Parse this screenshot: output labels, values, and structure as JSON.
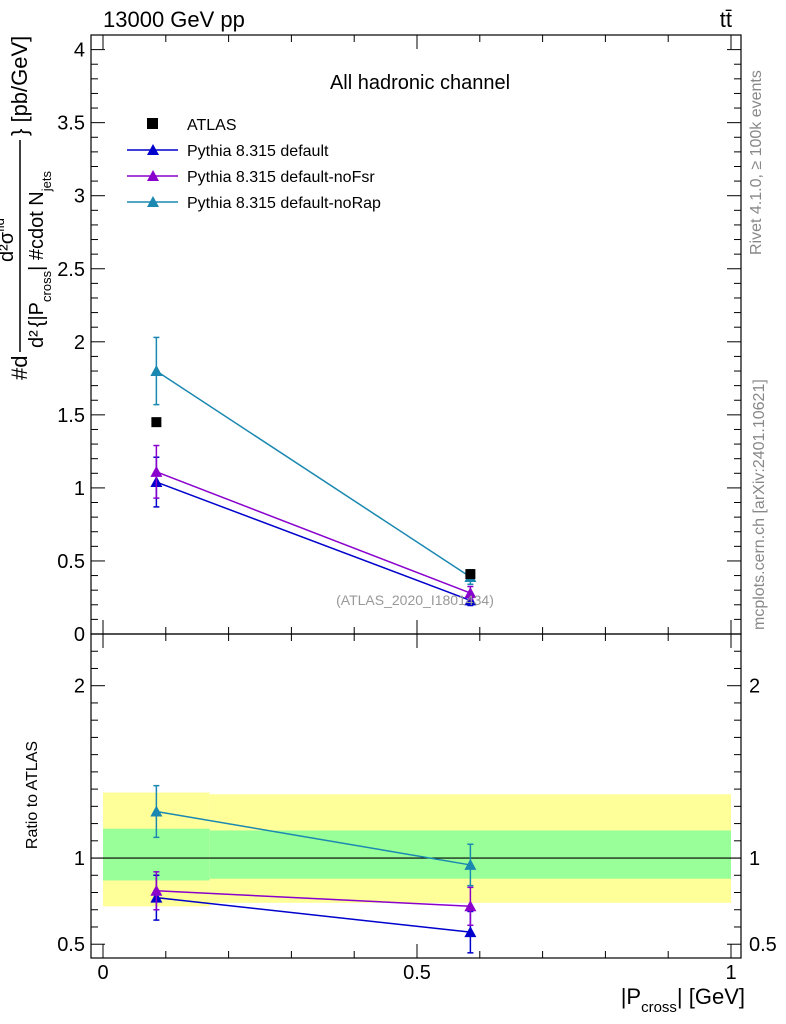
{
  "header": {
    "left": "13000 GeV pp",
    "right": "tt̄"
  },
  "side_labels": {
    "rivet": "Rivet 4.1.0, ≥ 100k events",
    "mcplots": "mcplots.cern.ch [arXiv:2401.10621]"
  },
  "chart_data": [
    {
      "type": "line",
      "title": "All hadronic channel",
      "watermark": "(ATLAS_2020_I1801434)",
      "ylabel": {
        "prefix": "#d",
        "numerator": "d²σ",
        "numerator_sup": "fid",
        "denominator_d2": "d²",
        "denominator": "{|P",
        "denominator_sub": "cross",
        "denominator_rest": "| #cdot N",
        "denominator_rest_sub": "jets",
        "unit": "} [pb/GeV]"
      },
      "ylim": [
        0,
        4.1
      ],
      "yticks": [
        "0",
        "0.5",
        "1",
        "1.5",
        "2",
        "2.5",
        "3",
        "3.5",
        "4"
      ],
      "legend": [
        "ATLAS",
        "Pythia 8.315 default",
        "Pythia 8.315 default-noFsr",
        "Pythia 8.315 default-noRap"
      ],
      "data": {
        "name": "ATLAS",
        "x": [
          0.085,
          0.585
        ],
        "y": [
          1.45,
          0.41
        ]
      },
      "series": [
        {
          "name": "Pythia 8.315 default",
          "color": "#0000cc",
          "x": [
            0.085,
            0.585
          ],
          "y": [
            1.04,
            0.23
          ],
          "err": [
            0.17,
            0.035
          ]
        },
        {
          "name": "Pythia 8.315 default-noFsr",
          "color": "#8a00cc",
          "x": [
            0.085,
            0.585
          ],
          "y": [
            1.11,
            0.28
          ],
          "err": [
            0.18,
            0.045
          ]
        },
        {
          "name": "Pythia 8.315 default-noRap",
          "color": "#1a88b0",
          "x": [
            0.085,
            0.585
          ],
          "y": [
            1.8,
            0.39
          ],
          "err": [
            0.23,
            0.05
          ]
        }
      ]
    },
    {
      "type": "line",
      "ylabel": "Ratio to ATLAS",
      "xlabel": {
        "pre": "|P",
        "sub": "cross",
        "post": "| [GeV]"
      },
      "xlim": [
        0,
        1
      ],
      "ylim": [
        0.42,
        2.3
      ],
      "xticks": [
        "0",
        "0.5",
        "1"
      ],
      "yticks": [
        "0.5",
        "1",
        "2"
      ],
      "bands": {
        "bins": [
          0,
          0.17,
          1
        ],
        "yellow_lo": [
          0.72,
          0.74
        ],
        "yellow_hi": [
          1.38,
          1.37
        ],
        "green_lo": [
          0.87,
          0.88
        ],
        "green_hi": [
          1.17,
          1.16
        ]
      },
      "series": [
        {
          "name": "Pythia 8.315 default",
          "color": "#0000cc",
          "x": [
            0.085,
            0.585
          ],
          "y": [
            0.77,
            0.57
          ],
          "err": [
            0.13,
            0.12
          ]
        },
        {
          "name": "Pythia 8.315 default-noFsr",
          "color": "#8a00cc",
          "x": [
            0.085,
            0.585
          ],
          "y": [
            0.81,
            0.72
          ],
          "err": [
            0.11,
            0.11
          ]
        },
        {
          "name": "Pythia 8.315 default-noRap",
          "color": "#1a88b0",
          "x": [
            0.085,
            0.585
          ],
          "y": [
            1.27,
            0.96
          ],
          "err": [
            0.15,
            0.12
          ]
        }
      ]
    }
  ]
}
